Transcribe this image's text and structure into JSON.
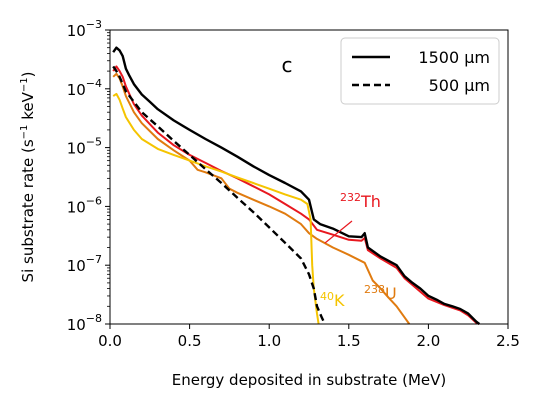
{
  "chart_data": {
    "type": "line",
    "panel_label": "c",
    "xlabel": "Energy deposited in substrate (MeV)",
    "ylabel_parts": [
      "Si substrate rate (s",
      "−1",
      " keV",
      "−1",
      ")"
    ],
    "xlim": [
      0.0,
      2.5
    ],
    "ylim": [
      1e-08,
      0.001
    ],
    "yscale": "log",
    "x_ticks": [
      "0.0",
      "0.5",
      "1.0",
      "1.5",
      "2.0",
      "2.5"
    ],
    "y_ticks": [
      {
        "base": "10",
        "exp": "−8",
        "value": 1e-08
      },
      {
        "base": "10",
        "exp": "−7",
        "value": 1e-07
      },
      {
        "base": "10",
        "exp": "−6",
        "value": 1e-06
      },
      {
        "base": "10",
        "exp": "−5",
        "value": 1e-05
      },
      {
        "base": "10",
        "exp": "−4",
        "value": 0.0001
      },
      {
        "base": "10",
        "exp": "−3",
        "value": 0.001
      }
    ],
    "grid": false,
    "legend": {
      "position": "top-right",
      "entries": [
        {
          "label": "1500 µm",
          "style": "solid"
        },
        {
          "label": "500 µm",
          "style": "dashed"
        }
      ]
    },
    "series": [
      {
        "name": "1500 µm total",
        "color": "#000000",
        "style": "solid",
        "points": [
          [
            0.02,
            0.00042
          ],
          [
            0.04,
            0.0005
          ],
          [
            0.06,
            0.00045
          ],
          [
            0.08,
            0.00036
          ],
          [
            0.1,
            0.00022
          ],
          [
            0.12,
            0.00017
          ],
          [
            0.15,
            0.00012
          ],
          [
            0.2,
            8e-05
          ],
          [
            0.25,
            6e-05
          ],
          [
            0.3,
            4.5e-05
          ],
          [
            0.4,
            2.9e-05
          ],
          [
            0.5,
            2e-05
          ],
          [
            0.6,
            1.4e-05
          ],
          [
            0.7,
            1e-05
          ],
          [
            0.8,
            7e-06
          ],
          [
            0.9,
            4.8e-06
          ],
          [
            1.0,
            3.4e-06
          ],
          [
            1.1,
            2.5e-06
          ],
          [
            1.2,
            1.8e-06
          ],
          [
            1.25,
            1.3e-06
          ],
          [
            1.28,
            6e-07
          ],
          [
            1.32,
            5e-07
          ],
          [
            1.4,
            4.2e-07
          ],
          [
            1.5,
            3.1e-07
          ],
          [
            1.58,
            3e-07
          ],
          [
            1.6,
            3.5e-07
          ],
          [
            1.62,
            2e-07
          ],
          [
            1.7,
            1.4e-07
          ],
          [
            1.8,
            1e-07
          ],
          [
            1.85,
            6.5e-08
          ],
          [
            1.9,
            5e-08
          ],
          [
            1.95,
            4e-08
          ],
          [
            2.0,
            3e-08
          ],
          [
            2.05,
            2.6e-08
          ],
          [
            2.1,
            2.2e-08
          ],
          [
            2.15,
            2e-08
          ],
          [
            2.2,
            1.8e-08
          ],
          [
            2.25,
            1.5e-08
          ],
          [
            2.3,
            1.1e-08
          ],
          [
            2.32,
            1e-08
          ]
        ]
      },
      {
        "name": "500 µm total",
        "color": "#000000",
        "style": "dashed",
        "points": [
          [
            0.02,
            0.00024
          ],
          [
            0.04,
            0.0002
          ],
          [
            0.06,
            0.00016
          ],
          [
            0.08,
            0.00012
          ],
          [
            0.1,
            9e-05
          ],
          [
            0.15,
            6e-05
          ],
          [
            0.2,
            4e-05
          ],
          [
            0.3,
            2.3e-05
          ],
          [
            0.4,
            1.3e-05
          ],
          [
            0.5,
            7.5e-06
          ],
          [
            0.6,
            4.3e-06
          ],
          [
            0.7,
            2.5e-06
          ],
          [
            0.8,
            1.4e-06
          ],
          [
            0.9,
            8e-07
          ],
          [
            1.0,
            4.4e-07
          ],
          [
            1.1,
            2.4e-07
          ],
          [
            1.2,
            1.3e-07
          ],
          [
            1.25,
            7e-08
          ],
          [
            1.28,
            4e-08
          ],
          [
            1.3,
            2e-08
          ],
          [
            1.33,
            1.3e-08
          ],
          [
            1.35,
            1e-08
          ]
        ]
      },
      {
        "name": "232Th",
        "color": "#e8181f",
        "style": "solid",
        "points": [
          [
            0.02,
            0.0002
          ],
          [
            0.04,
            0.00024
          ],
          [
            0.06,
            0.0002
          ],
          [
            0.08,
            0.00016
          ],
          [
            0.1,
            0.00011
          ],
          [
            0.15,
            5.5e-05
          ],
          [
            0.2,
            3.5e-05
          ],
          [
            0.3,
            1.8e-05
          ],
          [
            0.4,
            1.1e-05
          ],
          [
            0.5,
            7.5e-06
          ],
          [
            0.6,
            5.5e-06
          ],
          [
            0.7,
            4e-06
          ],
          [
            0.8,
            3e-06
          ],
          [
            0.9,
            2.2e-06
          ],
          [
            1.0,
            1.6e-06
          ],
          [
            1.1,
            1.1e-06
          ],
          [
            1.2,
            7.5e-07
          ],
          [
            1.25,
            6e-07
          ],
          [
            1.3,
            4e-07
          ],
          [
            1.4,
            3.3e-07
          ],
          [
            1.5,
            2.7e-07
          ],
          [
            1.58,
            2.6e-07
          ],
          [
            1.6,
            2.9e-07
          ],
          [
            1.62,
            1.8e-07
          ],
          [
            1.7,
            1.3e-07
          ],
          [
            1.8,
            9e-08
          ],
          [
            1.85,
            6e-08
          ],
          [
            1.9,
            4.6e-08
          ],
          [
            2.0,
            2.7e-08
          ],
          [
            2.1,
            2.1e-08
          ],
          [
            2.2,
            1.7e-08
          ],
          [
            2.25,
            1.4e-08
          ],
          [
            2.3,
            1.05e-08
          ],
          [
            2.32,
            1e-08
          ]
        ]
      },
      {
        "name": "238U",
        "color": "#e07b10",
        "style": "solid",
        "points": [
          [
            0.02,
            0.00016
          ],
          [
            0.04,
            0.00018
          ],
          [
            0.06,
            0.00015
          ],
          [
            0.08,
            0.00011
          ],
          [
            0.1,
            7.5e-05
          ],
          [
            0.15,
            4e-05
          ],
          [
            0.2,
            2.6e-05
          ],
          [
            0.3,
            1.4e-05
          ],
          [
            0.4,
            9e-06
          ],
          [
            0.5,
            6e-06
          ],
          [
            0.55,
            4.2e-06
          ],
          [
            0.6,
            3.8e-06
          ],
          [
            0.7,
            3e-06
          ],
          [
            0.75,
            2e-06
          ],
          [
            0.8,
            1.7e-06
          ],
          [
            0.9,
            1.3e-06
          ],
          [
            1.0,
            1e-06
          ],
          [
            1.1,
            7.5e-07
          ],
          [
            1.2,
            5e-07
          ],
          [
            1.25,
            3.5e-07
          ],
          [
            1.3,
            2.8e-07
          ],
          [
            1.4,
            2e-07
          ],
          [
            1.5,
            1.5e-07
          ],
          [
            1.6,
            1.1e-07
          ],
          [
            1.65,
            5.5e-08
          ],
          [
            1.7,
            4e-08
          ],
          [
            1.75,
            2.8e-08
          ],
          [
            1.8,
            2e-08
          ],
          [
            1.85,
            1.3e-08
          ],
          [
            1.88,
            1e-08
          ]
        ]
      },
      {
        "name": "40K",
        "color": "#f5c400",
        "style": "solid",
        "points": [
          [
            0.02,
            7.5e-05
          ],
          [
            0.04,
            8.2e-05
          ],
          [
            0.06,
            6.5e-05
          ],
          [
            0.08,
            4.6e-05
          ],
          [
            0.1,
            3.3e-05
          ],
          [
            0.15,
            2e-05
          ],
          [
            0.2,
            1.4e-05
          ],
          [
            0.3,
            9.5e-06
          ],
          [
            0.4,
            7.5e-06
          ],
          [
            0.5,
            6e-06
          ],
          [
            0.6,
            4.8e-06
          ],
          [
            0.7,
            3.9e-06
          ],
          [
            0.8,
            3.1e-06
          ],
          [
            0.9,
            2.5e-06
          ],
          [
            1.0,
            2e-06
          ],
          [
            1.1,
            1.6e-06
          ],
          [
            1.2,
            1.3e-06
          ],
          [
            1.24,
            1.1e-06
          ],
          [
            1.26,
            6e-07
          ],
          [
            1.27,
            1e-07
          ],
          [
            1.28,
            4e-08
          ],
          [
            1.3,
            1.5e-08
          ],
          [
            1.31,
            1e-08
          ]
        ]
      }
    ],
    "annotations": [
      {
        "sup": "232",
        "text": "Th",
        "color": "#e8181f",
        "x": 1.47,
        "y": 9e-07
      },
      {
        "sup": "40",
        "text": "K",
        "color": "#f5c400",
        "x": 1.41,
        "y": 1.7e-08
      },
      {
        "sup": "238",
        "text": "U",
        "color": "#e07b10",
        "x": 1.78,
        "y": 2e-08
      }
    ]
  }
}
